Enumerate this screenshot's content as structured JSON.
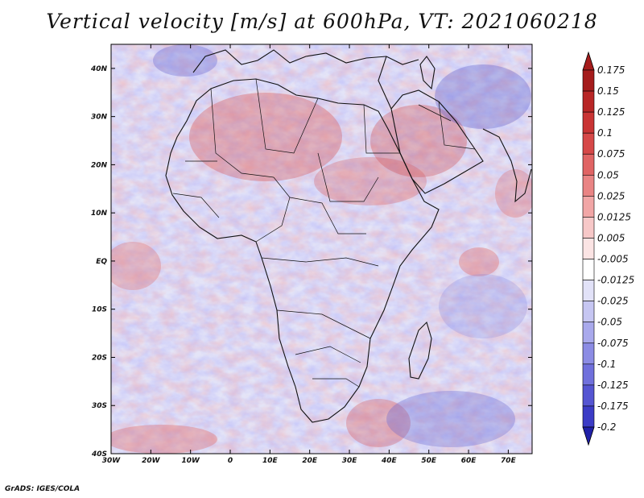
{
  "title": "Vertical velocity [m/s] at 600hPa, VT: 2021060218",
  "credit": "GrADS: IGES/COLA",
  "map": {
    "lon_range": [
      -30,
      76
    ],
    "lat_range": [
      -40,
      45
    ],
    "lat_ticks": [
      {
        "value": 40,
        "label": "40N"
      },
      {
        "value": 30,
        "label": "30N"
      },
      {
        "value": 20,
        "label": "20N"
      },
      {
        "value": 10,
        "label": "10N"
      },
      {
        "value": 0,
        "label": "EQ"
      },
      {
        "value": -10,
        "label": "10S"
      },
      {
        "value": -20,
        "label": "20S"
      },
      {
        "value": -30,
        "label": "30S"
      },
      {
        "value": -40,
        "label": "40S"
      }
    ],
    "lon_ticks": [
      {
        "value": -30,
        "label": "30W"
      },
      {
        "value": -20,
        "label": "20W"
      },
      {
        "value": -10,
        "label": "10W"
      },
      {
        "value": 0,
        "label": "0"
      },
      {
        "value": 10,
        "label": "10E"
      },
      {
        "value": 20,
        "label": "20E"
      },
      {
        "value": 30,
        "label": "30E"
      },
      {
        "value": 40,
        "label": "40E"
      },
      {
        "value": 50,
        "label": "50E"
      },
      {
        "value": 60,
        "label": "60E"
      },
      {
        "value": 70,
        "label": "70E"
      }
    ]
  },
  "colorbar": {
    "levels": [
      {
        "label": "0.175",
        "color": "#a51c1c"
      },
      {
        "label": "0.15",
        "color": "#b82626"
      },
      {
        "label": "0.125",
        "color": "#c93434"
      },
      {
        "label": "0.1",
        "color": "#d64848"
      },
      {
        "label": "0.075",
        "color": "#e06464"
      },
      {
        "label": "0.05",
        "color": "#e98484"
      },
      {
        "label": "0.025",
        "color": "#f1a6a6"
      },
      {
        "label": "0.0125",
        "color": "#f7c8c8"
      },
      {
        "label": "0.005",
        "color": "#fbe4e4"
      },
      {
        "label": "-0.005",
        "color": "#ffffff"
      },
      {
        "label": "-0.0125",
        "color": "#e2e2f8"
      },
      {
        "label": "-0.025",
        "color": "#c6c6f2"
      },
      {
        "label": "-0.05",
        "color": "#a9a9ec"
      },
      {
        "label": "-0.075",
        "color": "#8c8ce4"
      },
      {
        "label": "-0.1",
        "color": "#7070dc"
      },
      {
        "label": "-0.125",
        "color": "#5555d2"
      },
      {
        "label": "-0.175",
        "color": "#3c3cc6"
      },
      {
        "label": "-0.2",
        "color": "#2828b4"
      }
    ],
    "top_arrow_color": "#a51c1c",
    "bottom_arrow_color": "#2020a8"
  }
}
